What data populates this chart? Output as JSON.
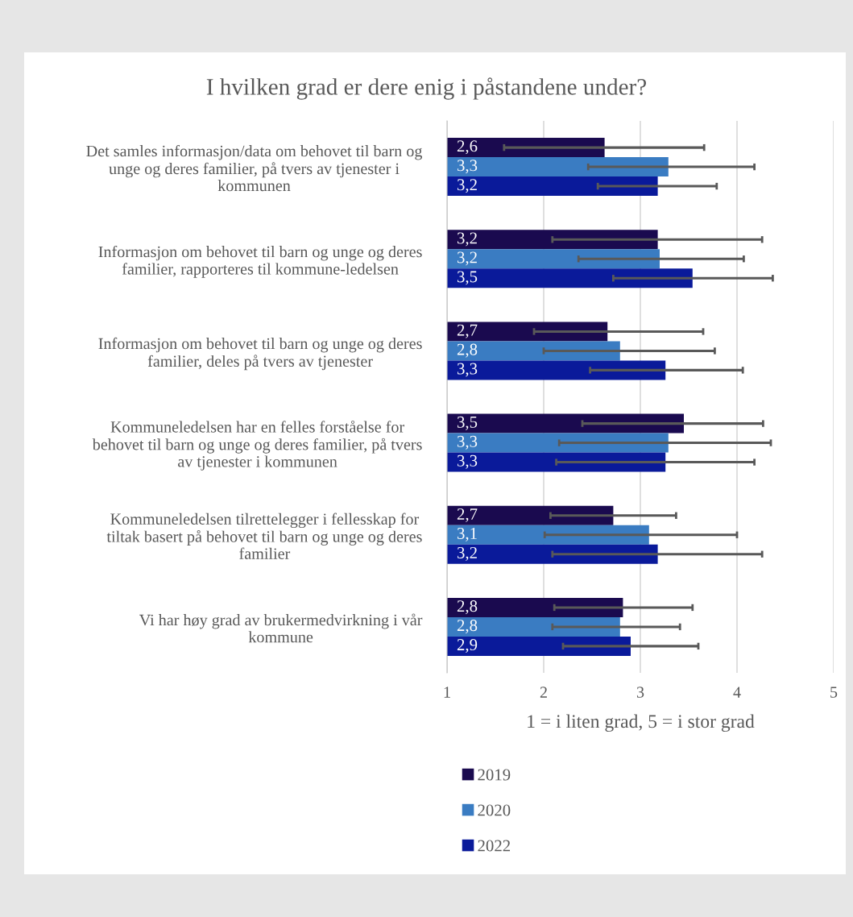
{
  "chart_data": {
    "type": "bar",
    "orientation": "horizontal",
    "title": "I hvilken grad er dere enig i påstandene under?",
    "xlabel": "1 = i liten grad, 5 = i stor grad",
    "categories": [
      "Det samles informasjon/data om behovet til barn og\nunge og deres familier, på tvers av tjenester i\nkommunen",
      "Informasjon om behovet til barn og unge og deres\nfamilier, rapporteres til kommune-ledelsen",
      "Informasjon om behovet til barn og unge og deres\nfamilier, deles på tvers av tjenester",
      "Kommuneledelsen har en felles forståelse for\nbehovet til barn og unge og deres familier, på tvers\nav tjenester i kommunen",
      "Kommuneledelsen tilrettelegger i fellesskap for\ntiltak basert på behovet til barn og unge og deres\nfamilier",
      "Vi har høy grad av brukermedvirkning i vår\nkommune"
    ],
    "series": [
      {
        "name": "2019",
        "color": "#1a0a4f",
        "values": [
          2.63,
          3.18,
          2.66,
          3.45,
          2.72,
          2.82
        ],
        "value_labels": [
          "2,6",
          "3,2",
          "2,7",
          "3,5",
          "2,7",
          "2,8"
        ],
        "errors": [
          [
            1.59,
            3.66
          ],
          [
            2.09,
            4.26
          ],
          [
            1.9,
            3.65
          ],
          [
            2.4,
            4.27
          ],
          [
            2.07,
            3.37
          ],
          [
            2.11,
            3.54
          ]
        ]
      },
      {
        "name": "2020",
        "color": "#3a7cc2",
        "values": [
          3.29,
          3.2,
          2.79,
          3.29,
          3.09,
          2.79
        ],
        "value_labels": [
          "3,3",
          "3,2",
          "2,8",
          "3,3",
          "3,1",
          "2,8"
        ],
        "errors": [
          [
            2.46,
            4.18
          ],
          [
            2.36,
            4.07
          ],
          [
            2.0,
            3.77
          ],
          [
            2.16,
            4.35
          ],
          [
            2.01,
            4.0
          ],
          [
            2.09,
            3.41
          ]
        ]
      },
      {
        "name": "2022",
        "color": "#0a1a9a",
        "values": [
          3.18,
          3.54,
          3.26,
          3.26,
          3.18,
          2.9
        ],
        "value_labels": [
          "3,2",
          "3,5",
          "3,3",
          "3,3",
          "3,2",
          "2,9"
        ],
        "errors": [
          [
            2.56,
            3.79
          ],
          [
            2.72,
            4.37
          ],
          [
            2.48,
            4.06
          ],
          [
            2.13,
            4.18
          ],
          [
            2.09,
            4.26
          ],
          [
            2.2,
            3.6
          ]
        ]
      }
    ],
    "xlim": [
      1,
      5
    ],
    "xticks": [
      1,
      2,
      3,
      4,
      5
    ],
    "grid": "x",
    "legend": "bottom"
  }
}
